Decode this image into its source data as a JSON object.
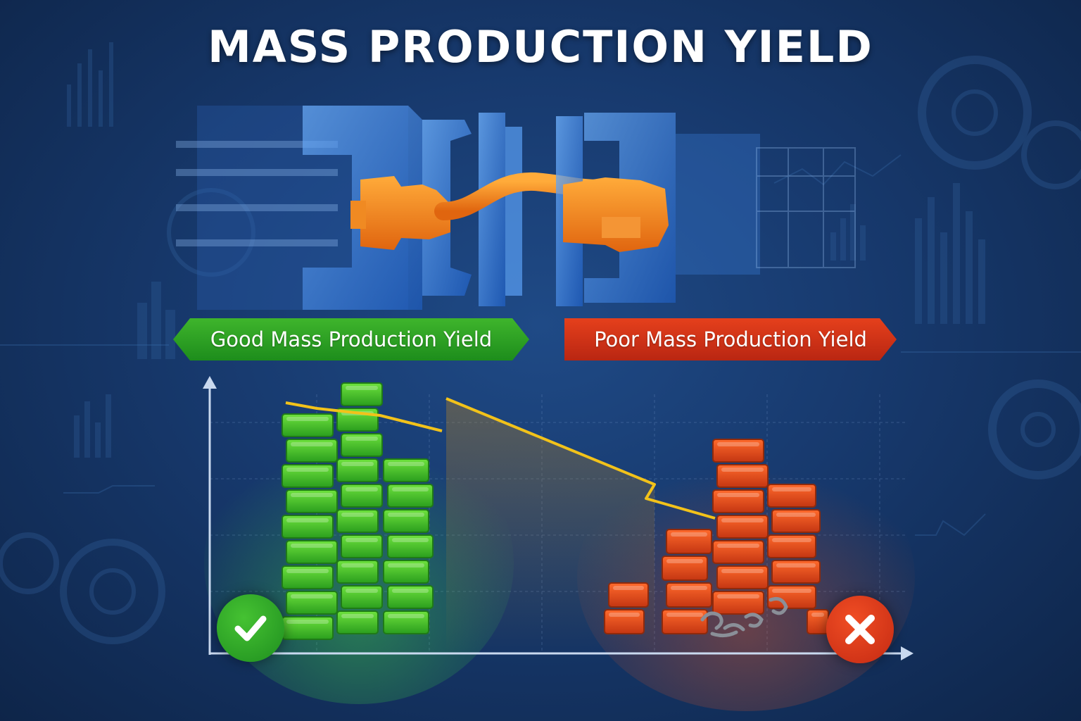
{
  "title": "MASS PRODUCTION YIELD",
  "banners": {
    "good": "Good Mass Production Yield",
    "poor": "Poor Mass Production Yield"
  },
  "badges": {
    "good_icon": "check-mark-icon",
    "poor_icon": "x-mark-icon"
  },
  "colors": {
    "good": "#2aa12a",
    "poor": "#e0461c",
    "trend_line": "#f2c21a",
    "background": "#17396d"
  }
}
